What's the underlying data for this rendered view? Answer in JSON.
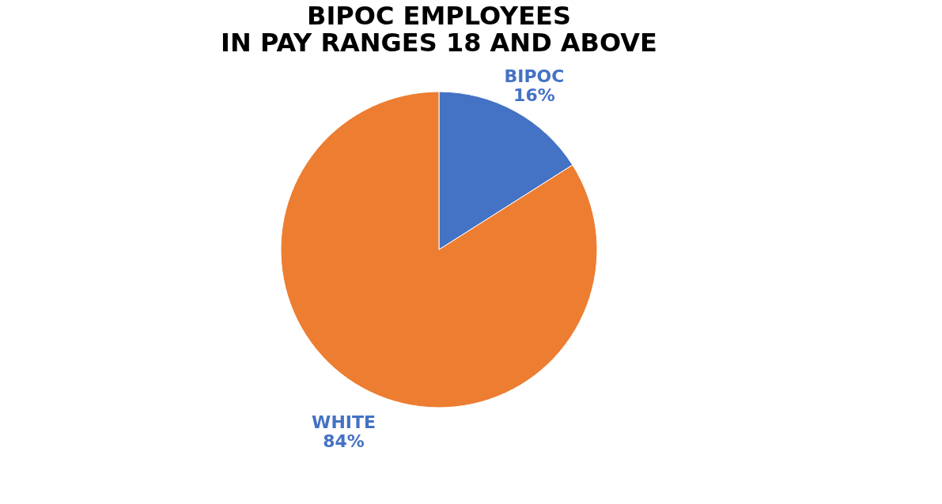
{
  "chart_data": {
    "type": "pie",
    "title": [
      "BIPOC EMPLOYEES",
      "IN PAY RANGES 18 AND ABOVE"
    ],
    "categories": [
      "BIPOC",
      "WHITE"
    ],
    "values": [
      16,
      84
    ],
    "colors": [
      "#4472c4",
      "#ed7d31"
    ],
    "value_labels": [
      "16%",
      "84%"
    ],
    "legend": false
  }
}
